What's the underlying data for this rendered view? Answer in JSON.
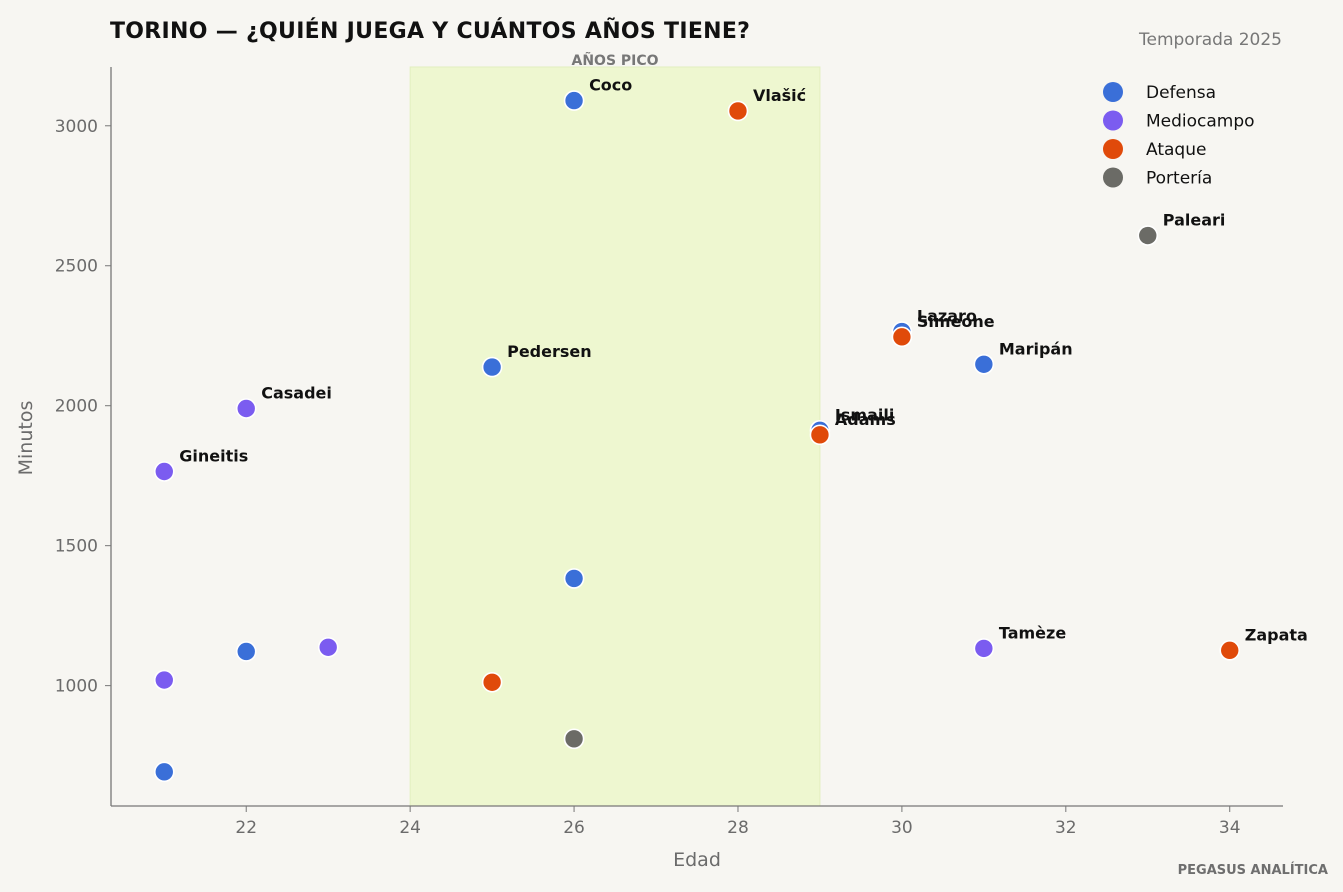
{
  "chart_data": {
    "type": "scatter",
    "title": "TORINO — ¿QUIÉN JUEGA Y CUÁNTOS AÑOS TIENE?",
    "subtitle": "Temporada 2025",
    "credit": "PEGASUS ANALÍTICA",
    "xlabel": "Edad",
    "ylabel": "Minutos",
    "xlim": [
      20.35,
      34.65
    ],
    "ylim": [
      570,
      3210
    ],
    "xticks": [
      22,
      24,
      26,
      28,
      30,
      32,
      34
    ],
    "yticks": [
      1000,
      1500,
      2000,
      2500,
      3000
    ],
    "grid": false,
    "legend_position": "top-right",
    "band": {
      "x": [
        24,
        29
      ],
      "label": "AÑOS PICO",
      "color": "#eef7d0"
    },
    "series": [
      {
        "name": "Defensa",
        "color": "#3a6fd8",
        "points": [
          {
            "x": 26,
            "y": 3090,
            "label": "Coco"
          },
          {
            "x": 25,
            "y": 2138,
            "label": "Pedersen"
          },
          {
            "x": 30,
            "y": 2265,
            "label": "Lazaro"
          },
          {
            "x": 31,
            "y": 2148,
            "label": "Maripán"
          },
          {
            "x": 29,
            "y": 1912,
            "label": "Ismaili"
          },
          {
            "x": 26,
            "y": 1383,
            "label": ""
          },
          {
            "x": 22,
            "y": 1122,
            "label": ""
          },
          {
            "x": 21,
            "y": 692,
            "label": ""
          }
        ]
      },
      {
        "name": "Mediocampo",
        "color": "#7b5cf0",
        "points": [
          {
            "x": 22,
            "y": 1990,
            "label": "Casadei"
          },
          {
            "x": 21,
            "y": 1765,
            "label": "Gineitis"
          },
          {
            "x": 31,
            "y": 1133,
            "label": "Tamèze"
          },
          {
            "x": 23,
            "y": 1137,
            "label": ""
          },
          {
            "x": 21,
            "y": 1020,
            "label": ""
          }
        ]
      },
      {
        "name": "Ataque",
        "color": "#e04a0a",
        "points": [
          {
            "x": 28,
            "y": 3053,
            "label": "Vlašić"
          },
          {
            "x": 30,
            "y": 2246,
            "label": "Simeone"
          },
          {
            "x": 29,
            "y": 1896,
            "label": "Adams"
          },
          {
            "x": 34,
            "y": 1126,
            "label": "Zapata"
          },
          {
            "x": 25,
            "y": 1012,
            "label": ""
          }
        ]
      },
      {
        "name": "Portería",
        "color": "#6b6b66",
        "points": [
          {
            "x": 33,
            "y": 2608,
            "label": "Paleari"
          },
          {
            "x": 26,
            "y": 810,
            "label": ""
          }
        ]
      }
    ]
  }
}
